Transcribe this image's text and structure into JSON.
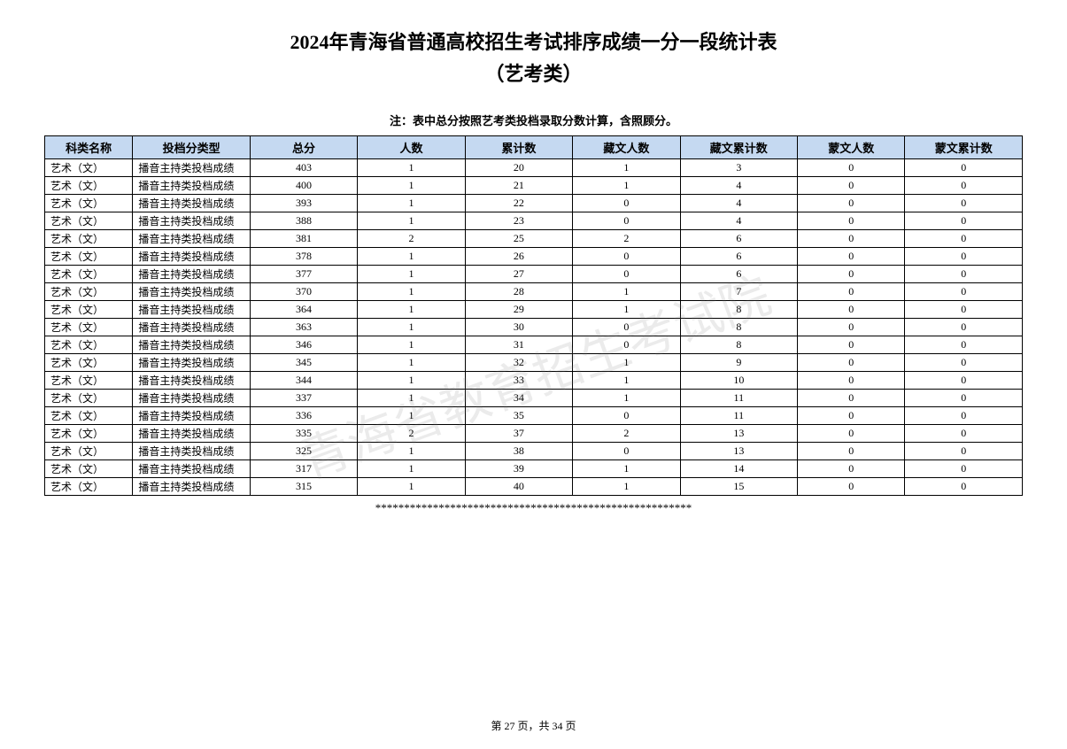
{
  "title_line1": "2024年青海省普通高校招生考试排序成绩一分一段统计表",
  "title_line2": "（艺考类）",
  "note": "注：表中总分按照艺考类投档录取分数计算，含照顾分。",
  "watermark": "青海省教育招生考试院",
  "divider": "*******************************************************",
  "footer": "第 27 页，共 34 页",
  "table": {
    "columns": [
      "科类名称",
      "投档分类型",
      "总分",
      "人数",
      "累计数",
      "藏文人数",
      "藏文累计数",
      "蒙文人数",
      "蒙文累计数"
    ],
    "header_bg": "#c5d9f1",
    "border_color": "#000000",
    "rows": [
      [
        "艺术（文）",
        "播音主持类投档成绩",
        "403",
        "1",
        "20",
        "1",
        "3",
        "0",
        "0"
      ],
      [
        "艺术（文）",
        "播音主持类投档成绩",
        "400",
        "1",
        "21",
        "1",
        "4",
        "0",
        "0"
      ],
      [
        "艺术（文）",
        "播音主持类投档成绩",
        "393",
        "1",
        "22",
        "0",
        "4",
        "0",
        "0"
      ],
      [
        "艺术（文）",
        "播音主持类投档成绩",
        "388",
        "1",
        "23",
        "0",
        "4",
        "0",
        "0"
      ],
      [
        "艺术（文）",
        "播音主持类投档成绩",
        "381",
        "2",
        "25",
        "2",
        "6",
        "0",
        "0"
      ],
      [
        "艺术（文）",
        "播音主持类投档成绩",
        "378",
        "1",
        "26",
        "0",
        "6",
        "0",
        "0"
      ],
      [
        "艺术（文）",
        "播音主持类投档成绩",
        "377",
        "1",
        "27",
        "0",
        "6",
        "0",
        "0"
      ],
      [
        "艺术（文）",
        "播音主持类投档成绩",
        "370",
        "1",
        "28",
        "1",
        "7",
        "0",
        "0"
      ],
      [
        "艺术（文）",
        "播音主持类投档成绩",
        "364",
        "1",
        "29",
        "1",
        "8",
        "0",
        "0"
      ],
      [
        "艺术（文）",
        "播音主持类投档成绩",
        "363",
        "1",
        "30",
        "0",
        "8",
        "0",
        "0"
      ],
      [
        "艺术（文）",
        "播音主持类投档成绩",
        "346",
        "1",
        "31",
        "0",
        "8",
        "0",
        "0"
      ],
      [
        "艺术（文）",
        "播音主持类投档成绩",
        "345",
        "1",
        "32",
        "1",
        "9",
        "0",
        "0"
      ],
      [
        "艺术（文）",
        "播音主持类投档成绩",
        "344",
        "1",
        "33",
        "1",
        "10",
        "0",
        "0"
      ],
      [
        "艺术（文）",
        "播音主持类投档成绩",
        "337",
        "1",
        "34",
        "1",
        "11",
        "0",
        "0"
      ],
      [
        "艺术（文）",
        "播音主持类投档成绩",
        "336",
        "1",
        "35",
        "0",
        "11",
        "0",
        "0"
      ],
      [
        "艺术（文）",
        "播音主持类投档成绩",
        "335",
        "2",
        "37",
        "2",
        "13",
        "0",
        "0"
      ],
      [
        "艺术（文）",
        "播音主持类投档成绩",
        "325",
        "1",
        "38",
        "0",
        "13",
        "0",
        "0"
      ],
      [
        "艺术（文）",
        "播音主持类投档成绩",
        "317",
        "1",
        "39",
        "1",
        "14",
        "0",
        "0"
      ],
      [
        "艺术（文）",
        "播音主持类投档成绩",
        "315",
        "1",
        "40",
        "1",
        "15",
        "0",
        "0"
      ]
    ]
  }
}
